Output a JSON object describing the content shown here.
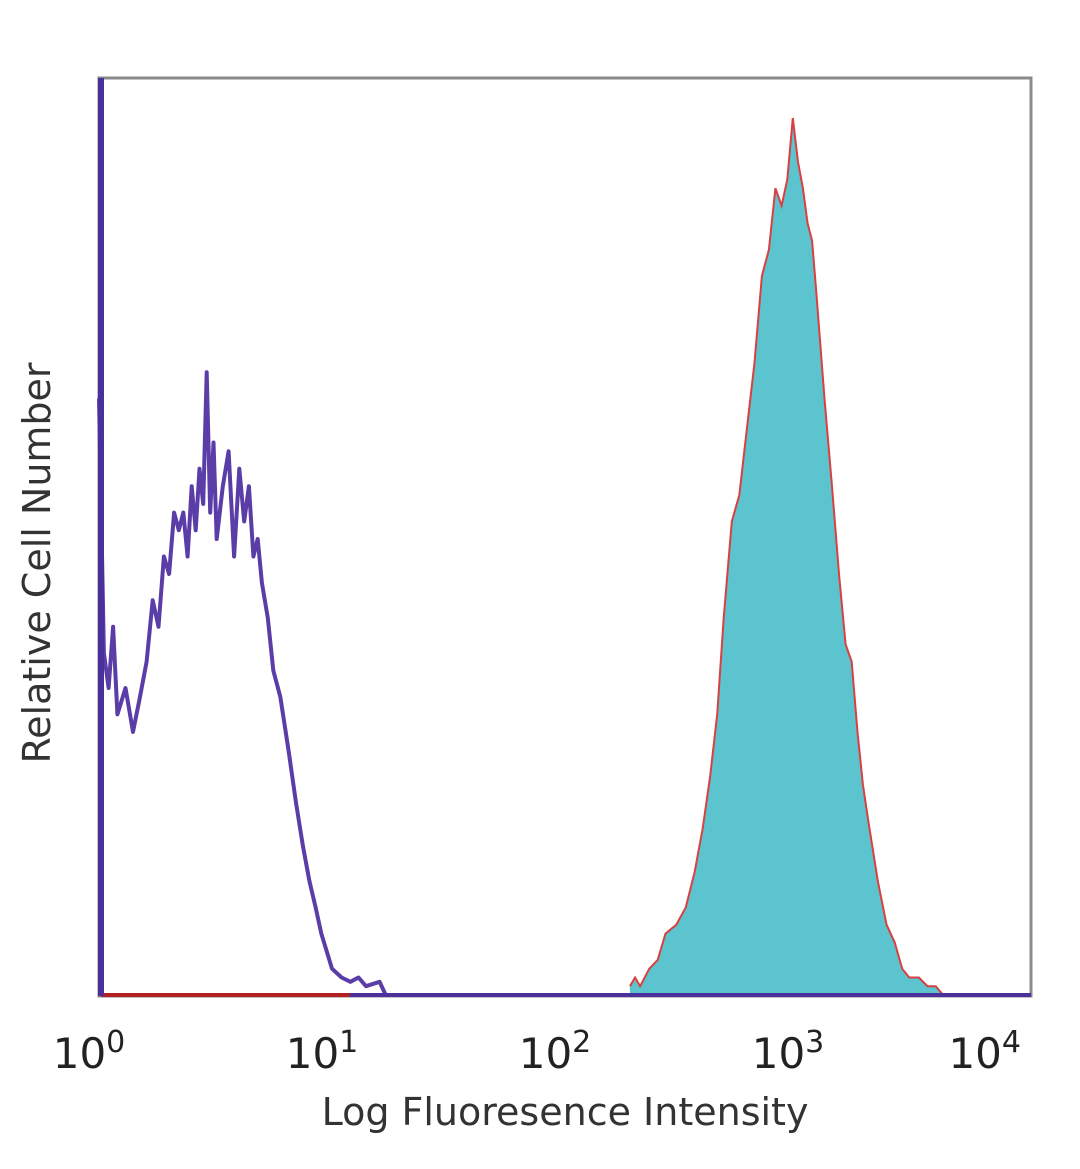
{
  "chart_data": {
    "type": "area",
    "xlabel": "Log Fluoresence Intensity",
    "ylabel": "Relative Cell Number",
    "xscale": "log",
    "xlim": [
      1,
      10000
    ],
    "ylim": [
      0,
      100
    ],
    "grid": false,
    "colors": {
      "frame": "#8a8a8a",
      "axis_line": "#4b2f9a",
      "baseline": "#b22222",
      "control": "#5b3da8",
      "stained_fill": "#5bc4cf",
      "stained_line": "#d94040"
    },
    "x_ticks": [
      {
        "base": "10",
        "exp": "0",
        "value": 1
      },
      {
        "base": "10",
        "exp": "1",
        "value": 10
      },
      {
        "base": "10",
        "exp": "2",
        "value": 100
      },
      {
        "base": "10",
        "exp": "3",
        "value": 1000
      },
      {
        "base": "10",
        "exp": "4",
        "value": 10000
      }
    ],
    "series": [
      {
        "kind": "outline",
        "x": [
          1.0,
          1.05,
          1.1,
          1.15,
          1.2,
          1.3,
          1.4,
          1.5,
          1.6,
          1.7,
          1.8,
          1.9,
          2.0,
          2.1,
          2.2,
          2.3,
          2.4,
          2.5,
          2.6,
          2.7,
          2.8,
          2.9,
          3.0,
          3.1,
          3.2,
          3.4,
          3.6,
          3.8,
          4.0,
          4.2,
          4.4,
          4.6,
          4.8,
          5.0,
          5.3,
          5.6,
          6.0,
          6.5,
          7.0,
          7.5,
          8.0,
          8.5,
          9.0,
          10.0,
          11.0,
          12.0,
          13.0,
          14.0,
          16.0,
          17.0
        ],
        "values": [
          68,
          39,
          35,
          42,
          32,
          35,
          30,
          34,
          38,
          45,
          42,
          50,
          48,
          55,
          53,
          55,
          50,
          58,
          53,
          60,
          56,
          71,
          55,
          63,
          52,
          58,
          62,
          50,
          60,
          54,
          58,
          50,
          52,
          47,
          43,
          37,
          34,
          28,
          22,
          17,
          13,
          10,
          7,
          3,
          2,
          1.5,
          2,
          1,
          1.5,
          0
        ]
      },
      {
        "kind": "filled",
        "x": [
          190,
          200,
          210,
          230,
          250,
          270,
          300,
          330,
          360,
          390,
          420,
          450,
          480,
          520,
          560,
          600,
          650,
          700,
          750,
          800,
          850,
          900,
          950,
          1000,
          1050,
          1100,
          1150,
          1200,
          1300,
          1400,
          1500,
          1600,
          1700,
          1800,
          1900,
          2000,
          2200,
          2400,
          2600,
          2800,
          3000,
          3300,
          3600,
          3900,
          4200
        ],
        "values": [
          1,
          2,
          1,
          3,
          4,
          7,
          8,
          10,
          14,
          19,
          25,
          32,
          43,
          54,
          57,
          64,
          72,
          82,
          85,
          92,
          90,
          93,
          100,
          95,
          92,
          88,
          86,
          80,
          68,
          58,
          48,
          40,
          38,
          30,
          24,
          20,
          13,
          8,
          6,
          3,
          2,
          2,
          1,
          1,
          0
        ]
      }
    ]
  }
}
